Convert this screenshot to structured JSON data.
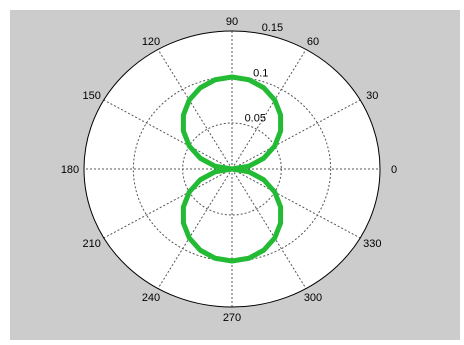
{
  "chart_data": {
    "type": "polar_line",
    "title": "",
    "angle_unit": "degrees",
    "angle_ticks": [
      "0",
      "30",
      "60",
      "90",
      "120",
      "150",
      "180",
      "210",
      "240",
      "270",
      "300",
      "330"
    ],
    "radial_ticks": [
      "0.05",
      "0.1",
      "0.15"
    ],
    "rlim": [
      0,
      0.15
    ],
    "grid": true,
    "series": [
      {
        "color": "#22bb33",
        "theta": [
          0,
          10,
          20,
          30,
          40,
          50,
          60,
          70,
          80,
          90,
          100,
          110,
          120,
          130,
          140,
          150,
          160,
          170,
          180,
          190,
          200,
          210,
          220,
          230,
          240,
          250,
          260,
          270,
          280,
          290,
          300,
          310,
          320,
          330,
          340,
          350,
          360
        ],
        "r": [
          0,
          0.0174,
          0.0342,
          0.05,
          0.0643,
          0.0766,
          0.0866,
          0.094,
          0.0985,
          0.1,
          0.0985,
          0.094,
          0.0866,
          0.0766,
          0.0643,
          0.05,
          0.0342,
          0.0174,
          0,
          0.0174,
          0.0342,
          0.05,
          0.0643,
          0.0766,
          0.0866,
          0.094,
          0.0985,
          0.1,
          0.0985,
          0.094,
          0.0866,
          0.0766,
          0.0643,
          0.05,
          0.0342,
          0.0174,
          0
        ]
      }
    ]
  },
  "colors": {
    "figure_background": "#cccccc",
    "axes_background": "#ffffff",
    "grid": "#555555",
    "curve": "#22bb33"
  }
}
